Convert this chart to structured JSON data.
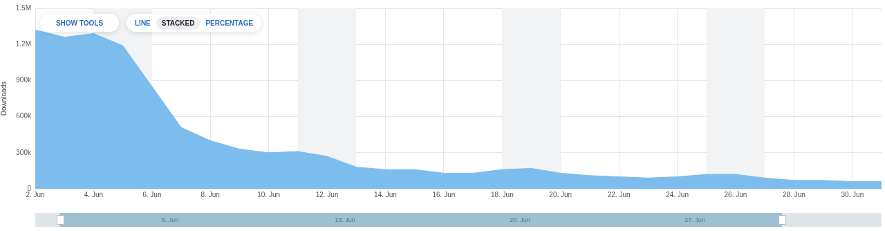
{
  "chart_data": {
    "type": "area",
    "ylabel": "Downloads",
    "x": [
      "--06-02",
      "--06-03",
      "--06-04",
      "--06-05",
      "--06-06",
      "--06-07",
      "--06-08",
      "--06-09",
      "--06-10",
      "--06-11",
      "--06-12",
      "--06-13",
      "--06-14",
      "--06-15",
      "--06-16",
      "--06-17",
      "--06-18",
      "--06-19",
      "--06-20",
      "--06-21",
      "--06-22",
      "--06-23",
      "--06-24",
      "--06-25",
      "--06-26",
      "--06-27",
      "--06-28",
      "--06-29",
      "--06-30",
      "--07-01"
    ],
    "series": [
      {
        "color": "#7dbdee",
        "values": [
          1320000,
          1260000,
          1290000,
          1190000,
          850000,
          510000,
          400000,
          330000,
          300000,
          310000,
          270000,
          180000,
          160000,
          160000,
          130000,
          130000,
          160000,
          170000,
          130000,
          110000,
          100000,
          90000,
          100000,
          120000,
          120000,
          90000,
          70000,
          70000,
          60000,
          60000
        ]
      }
    ],
    "xlim": [
      "--06-02",
      "--07-01"
    ],
    "xticks": [
      {
        "value": "--06-02",
        "label": "2. Jun"
      },
      {
        "value": "--06-04",
        "label": "4. Jun"
      },
      {
        "value": "--06-06",
        "label": "6. Jun"
      },
      {
        "value": "--06-08",
        "label": "8. Jun"
      },
      {
        "value": "--06-10",
        "label": "10. Jun"
      },
      {
        "value": "--06-12",
        "label": "12. Jun"
      },
      {
        "value": "--06-14",
        "label": "14. Jun"
      },
      {
        "value": "--06-16",
        "label": "16. Jun"
      },
      {
        "value": "--06-18",
        "label": "18. Jun"
      },
      {
        "value": "--06-20",
        "label": "20. Jun"
      },
      {
        "value": "--06-22",
        "label": "22. Jun"
      },
      {
        "value": "--06-24",
        "label": "24. Jun"
      },
      {
        "value": "--06-26",
        "label": "26. Jun"
      },
      {
        "value": "--06-28",
        "label": "28. Jun"
      },
      {
        "value": "--06-30",
        "label": "30. Jun"
      }
    ],
    "ylim": [
      0,
      1500000
    ],
    "yticks": [
      0,
      {
        "value": 300000,
        "label": "300k"
      },
      {
        "value": 600000,
        "label": "600k"
      },
      {
        "value": 900000,
        "label": "900k"
      },
      {
        "value": 1200000,
        "label": "1.2M"
      },
      {
        "value": 1500000,
        "label": "1.5M"
      }
    ],
    "bands": [
      {
        "axis": "x",
        "from": "--06-04",
        "to": "--06-06",
        "color": "#f2f3f5"
      },
      {
        "axis": "x",
        "from": "--06-11",
        "to": "--06-13",
        "color": "#f2f3f5"
      },
      {
        "axis": "x",
        "from": "--06-18",
        "to": "--06-20",
        "color": "#f2f3f5"
      },
      {
        "axis": "x",
        "from": "--06-25",
        "to": "--06-27",
        "color": "#f2f3f5"
      }
    ],
    "annotations": [
      "SHOW TOOLS",
      "LINE",
      "STACKED",
      "PERCENTAGE",
      "6. Jun",
      "13. Jun",
      "20. Jun",
      "27. Jun"
    ],
    "grid": true,
    "legend": false
  }
}
